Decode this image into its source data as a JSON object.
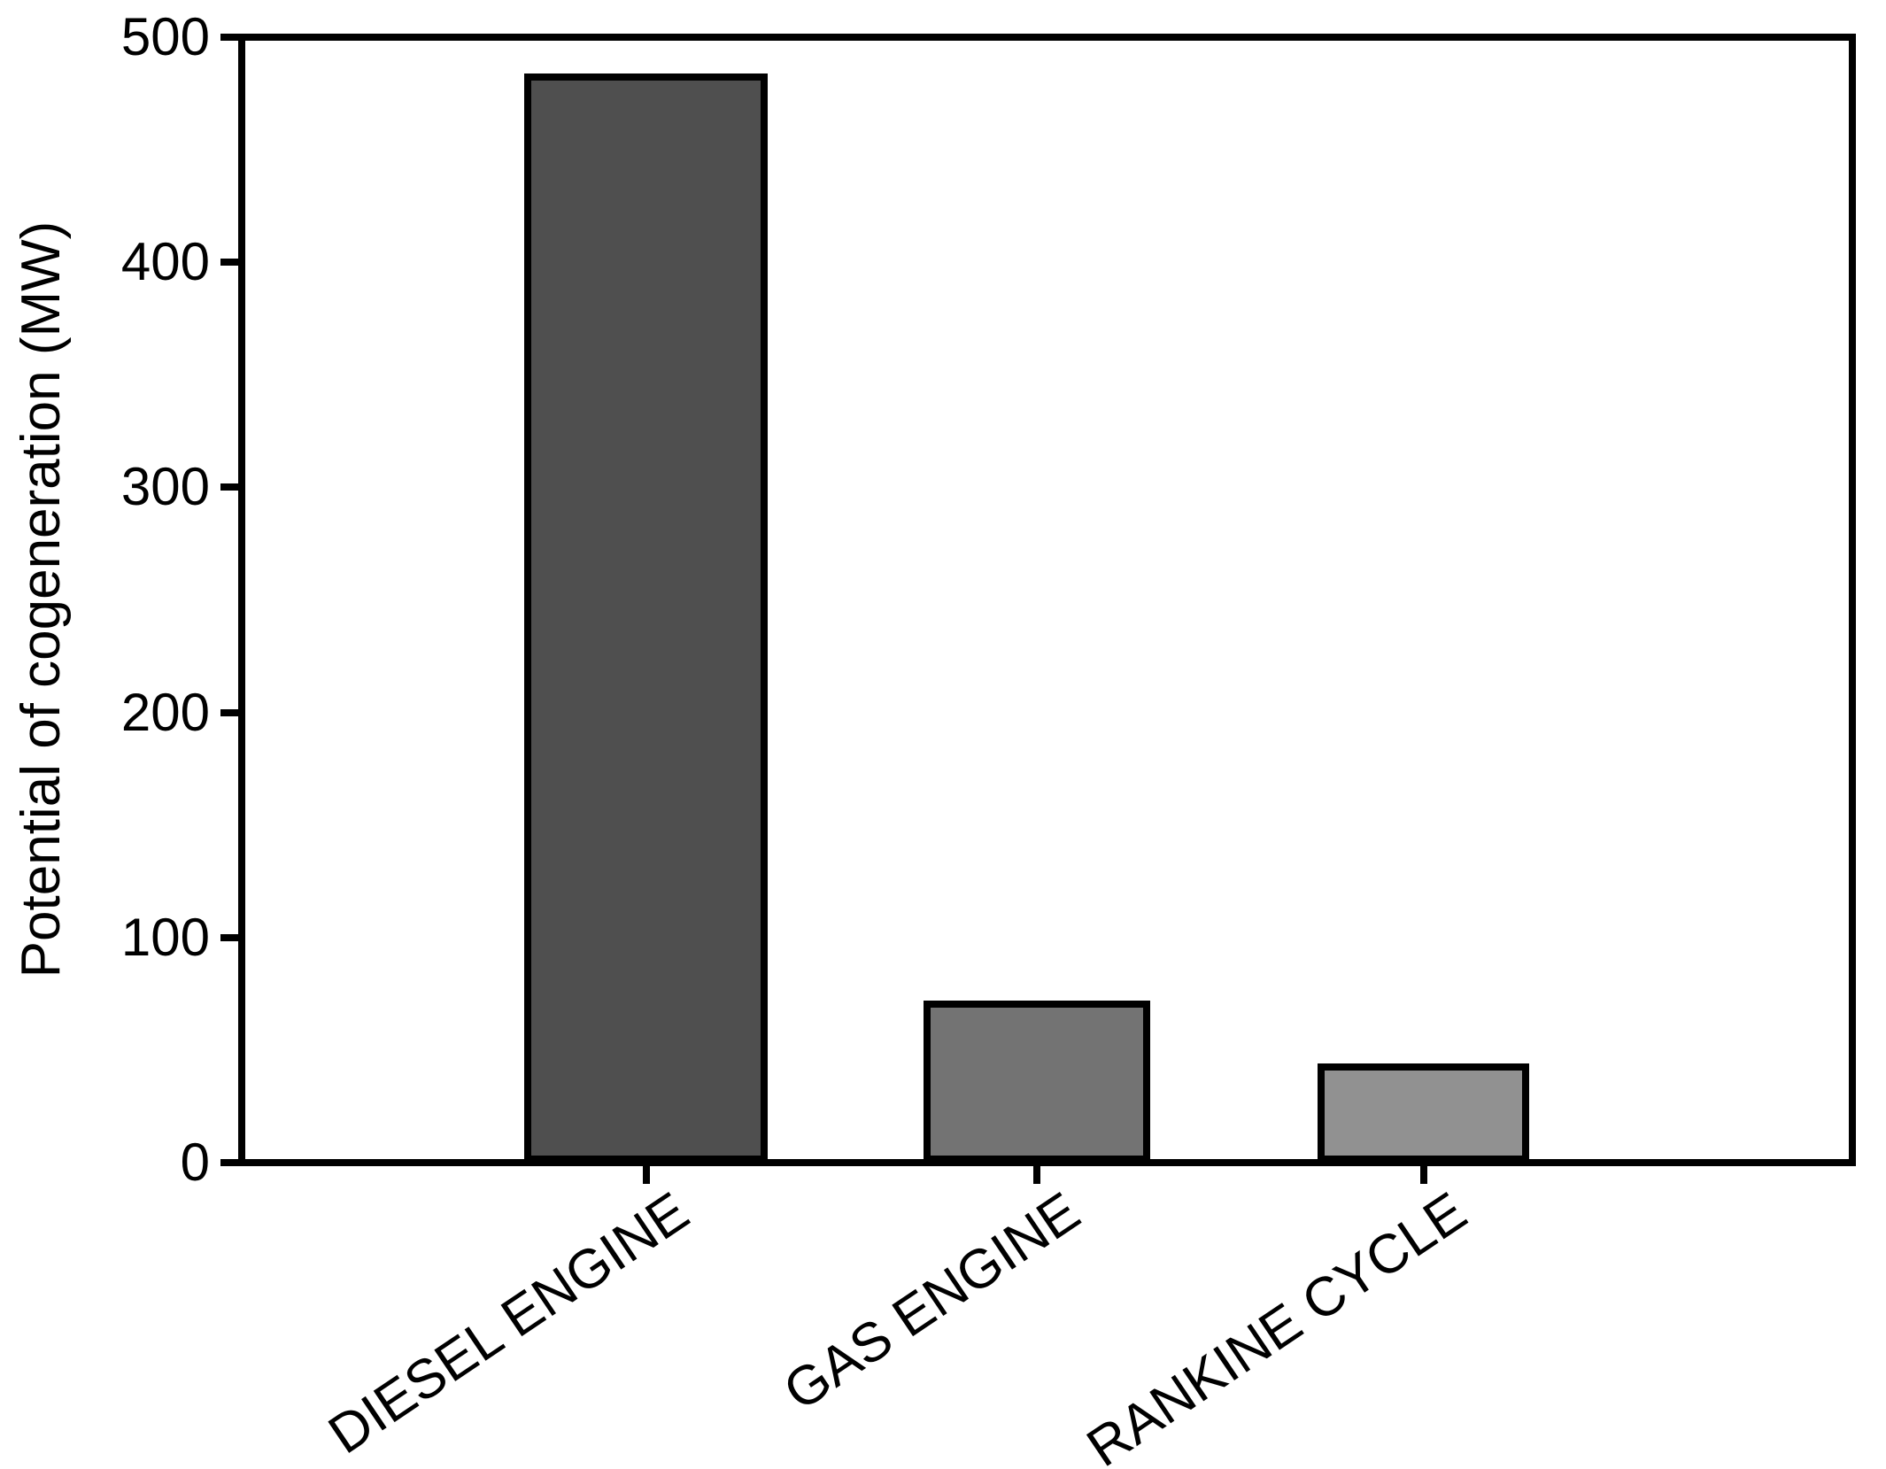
{
  "chart_data": {
    "type": "bar",
    "title": "",
    "xlabel": "",
    "ylabel": "Potential of cogeneration (MW)",
    "categories": [
      "DIESEL ENGINE",
      "GAS ENGINE",
      "RANKINE CYCLE"
    ],
    "values": [
      484,
      72,
      44
    ],
    "ytick_values": [
      0,
      100,
      200,
      300,
      400,
      500
    ],
    "ytick_labels": [
      "0",
      "100",
      "200",
      "300",
      "400",
      "500"
    ],
    "ylim": [
      0,
      500
    ],
    "bar_colors": [
      "#4f4f4f",
      "#737373",
      "#919191"
    ],
    "bar_border_color": "#000000",
    "axis_color": "#000000",
    "grid": "off",
    "legend": "none",
    "frame": "full-box",
    "xtick_label_rotation_deg": -34
  }
}
